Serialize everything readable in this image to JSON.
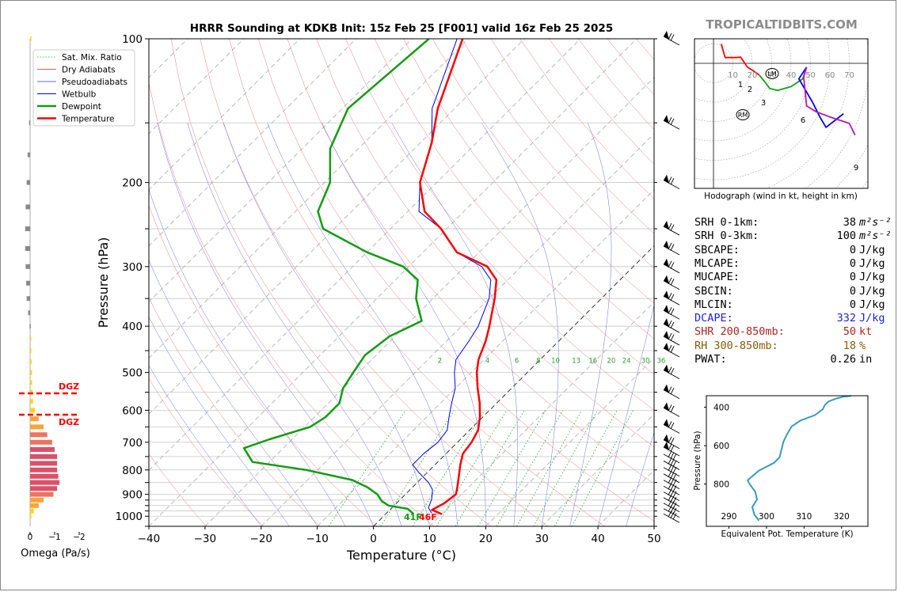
{
  "watermark": "TROPICALTIDBITS.COM",
  "chart_data": [
    {
      "type": "line",
      "subtype": "skew-t",
      "title": "HRRR Sounding at KDKB Init: 15z Feb 25 [F001] valid 16z Feb 25 2025",
      "xlabel": "Temperature (°C)",
      "ylabel": "Pressure (hPa)",
      "xlim": [
        -40,
        50
      ],
      "ylim": [
        1050,
        100
      ],
      "xticks": [
        "−40",
        "−30",
        "−20",
        "−10",
        "0",
        "10",
        "20",
        "30",
        "40",
        "50"
      ],
      "yticks": [
        "100",
        "200",
        "300",
        "400",
        "500",
        "600",
        "700",
        "800",
        "900",
        "1000"
      ],
      "legend": {
        "placement": "top-left",
        "entries": [
          {
            "label": "Sat. Mix. Ratio",
            "color": "#2ca02c",
            "style": "dotted"
          },
          {
            "label": "Dry Adiabats",
            "color": "#d62728",
            "style": "solid-thin"
          },
          {
            "label": "Pseudoadiabats",
            "color": "#1f3fd6",
            "style": "solid-thin"
          },
          {
            "label": "Wetbulb",
            "color": "#0000ff",
            "style": "solid"
          },
          {
            "label": "Dewpoint",
            "color": "#129c12",
            "style": "thick"
          },
          {
            "label": "Temperature",
            "color": "#ff0000",
            "style": "thick"
          }
        ]
      },
      "mixing_ratio_labels": [
        "2",
        "4",
        "6",
        "8",
        "10",
        "13",
        "16",
        "20",
        "24",
        "30",
        "36"
      ],
      "surface_labels": {
        "dewpoint": "41F",
        "temperature": "46F"
      },
      "series": [
        {
          "name": "Temperature",
          "color": "#ff0000",
          "points": [
            [
              10,
              990
            ],
            [
              7.5,
              970
            ],
            [
              8.5,
              940
            ],
            [
              9,
              900
            ],
            [
              8,
              870
            ],
            [
              6.5,
              830
            ],
            [
              4.5,
              780
            ],
            [
              3,
              740
            ],
            [
              2.5,
              700
            ],
            [
              1.5,
              660
            ],
            [
              -0.5,
              620
            ],
            [
              -3,
              580
            ],
            [
              -6,
              540
            ],
            [
              -9,
              500
            ],
            [
              -11,
              470
            ],
            [
              -13,
              430
            ],
            [
              -15,
              400
            ],
            [
              -19,
              350
            ],
            [
              -22,
              320
            ],
            [
              -26,
              300
            ],
            [
              -34,
              280
            ],
            [
              -41,
              250
            ],
            [
              -47,
              230
            ],
            [
              -53,
              200
            ],
            [
              -58,
              165
            ],
            [
              -63,
              140
            ],
            [
              -71,
              100
            ]
          ]
        },
        {
          "name": "Dewpoint",
          "color": "#129c12",
          "points": [
            [
              5,
              990
            ],
            [
              3,
              965
            ],
            [
              -1,
              950
            ],
            [
              -3,
              930
            ],
            [
              -5,
              900
            ],
            [
              -8,
              870
            ],
            [
              -12,
              840
            ],
            [
              -22,
              800
            ],
            [
              -33,
              770
            ],
            [
              -37,
              720
            ],
            [
              -34,
              690
            ],
            [
              -29,
              650
            ],
            [
              -28,
              620
            ],
            [
              -28,
              580
            ],
            [
              -30,
              540
            ],
            [
              -31,
              500
            ],
            [
              -32,
              460
            ],
            [
              -31,
              420
            ],
            [
              -28,
              390
            ],
            [
              -33,
              350
            ],
            [
              -36,
              320
            ],
            [
              -41,
              300
            ],
            [
              -50,
              280
            ],
            [
              -62,
              250
            ],
            [
              -66,
              230
            ],
            [
              -69,
              200
            ],
            [
              -75,
              170
            ],
            [
              -79,
              140
            ],
            [
              -77,
              100
            ]
          ]
        },
        {
          "name": "Wetbulb",
          "color": "#0000ff",
          "points": [
            [
              8,
              985
            ],
            [
              6.5,
              960
            ],
            [
              5.5,
              920
            ],
            [
              4,
              880
            ],
            [
              2,
              850
            ],
            [
              -1.5,
              810
            ],
            [
              -4,
              780
            ],
            [
              -4,
              740
            ],
            [
              -3.5,
              700
            ],
            [
              -4,
              660
            ],
            [
              -6,
              620
            ],
            [
              -8,
              580
            ],
            [
              -10,
              540
            ],
            [
              -13,
              500
            ],
            [
              -15,
              470
            ],
            [
              -16,
              430
            ],
            [
              -17,
              400
            ],
            [
              -20,
              350
            ],
            [
              -23,
              320
            ],
            [
              -27,
              300
            ],
            [
              -34,
              280
            ],
            [
              -41,
              250
            ],
            [
              -48,
              230
            ],
            [
              -53,
              200
            ],
            [
              -58,
              165
            ],
            [
              -64,
              140
            ],
            [
              -72,
              100
            ]
          ]
        }
      ]
    },
    {
      "type": "bar",
      "subtype": "horizontal",
      "name": "omega-profile",
      "xlabel": "Omega (Pa/s)",
      "xticks": [
        "0",
        "−1",
        "−2"
      ],
      "dgz_label": "DGZ",
      "dgz_pressure": [
        570,
        630
      ],
      "levels": [
        1000,
        975,
        950,
        925,
        900,
        875,
        850,
        825,
        800,
        775,
        750,
        725,
        700,
        675,
        650,
        625,
        600,
        575,
        550,
        525,
        500,
        475,
        450,
        425,
        400,
        375,
        350,
        325,
        300,
        275,
        250,
        225,
        200,
        175,
        150,
        100
      ],
      "values": [
        -0.05,
        -0.15,
        -0.35,
        -0.55,
        -0.95,
        -1.1,
        -1.2,
        -1.15,
        -1.1,
        -1.1,
        -1.1,
        -1.0,
        -0.9,
        -0.7,
        -0.55,
        -0.35,
        -0.2,
        -0.12,
        -0.1,
        -0.08,
        -0.08,
        -0.06,
        -0.05,
        -0.04,
        0.02,
        0.08,
        0.14,
        0.16,
        0.18,
        0.2,
        0.2,
        0.18,
        0.14,
        0.1,
        0.04,
        -0.05
      ]
    },
    {
      "type": "line",
      "subtype": "hodograph",
      "caption": "Hodograph (wind in kt, height in km)",
      "ring_labels": [
        "10",
        "20",
        "30",
        "40",
        "50",
        "60",
        "70"
      ],
      "markers": [
        "LM",
        "RM"
      ],
      "height_labels": [
        "1",
        "2",
        "3",
        "6",
        "9"
      ],
      "segments": [
        {
          "color": "#ff0000",
          "points": [
            [
              4,
              10
            ],
            [
              6,
              3
            ],
            [
              12,
              3
            ],
            [
              14,
              3.2
            ],
            [
              17.5,
              -2
            ],
            [
              20,
              -3.5
            ],
            [
              23.5,
              -6
            ]
          ]
        },
        {
          "color": "#14a214",
          "points": [
            [
              23.5,
              -6
            ],
            [
              26,
              -9
            ],
            [
              29,
              -13
            ],
            [
              33,
              -14
            ],
            [
              40,
              -12
            ],
            [
              46,
              -8
            ],
            [
              48,
              -2
            ]
          ]
        },
        {
          "color": "#0000ff",
          "points": [
            [
              48,
              -2
            ],
            [
              44,
              -8
            ],
            [
              51,
              -20
            ],
            [
              55,
              -28
            ],
            [
              58,
              -33
            ],
            [
              67,
              -26
            ]
          ]
        },
        {
          "color": "#b418b4",
          "points": [
            [
              48,
              -2
            ],
            [
              46.5,
              -7
            ],
            [
              48,
              -22
            ],
            [
              53,
              -25
            ],
            [
              61,
              -28
            ],
            [
              70,
              -31
            ],
            [
              73,
              -37
            ]
          ]
        }
      ]
    },
    {
      "type": "line",
      "name": "theta-e-profile",
      "xlabel": "Equivalent Pot. Temperature (K)",
      "ylabel": "Pressure (hPa)",
      "xticks": [
        "290",
        "300",
        "310",
        "320"
      ],
      "yticks": [
        "400",
        "600",
        "800"
      ],
      "xlim": [
        284,
        327
      ],
      "ylim": [
        1020,
        340
      ],
      "color": "#3a9abf",
      "points": [
        [
          298,
          990
        ],
        [
          296.8,
          960
        ],
        [
          296.2,
          920
        ],
        [
          297.5,
          880
        ],
        [
          297,
          840
        ],
        [
          295.5,
          800
        ],
        [
          295,
          780
        ],
        [
          298,
          730
        ],
        [
          302,
          690
        ],
        [
          303.5,
          660
        ],
        [
          304,
          620
        ],
        [
          304.5,
          580
        ],
        [
          305.5,
          540
        ],
        [
          306.7,
          500
        ],
        [
          309,
          470
        ],
        [
          313,
          440
        ],
        [
          315,
          410
        ],
        [
          315.5,
          390
        ],
        [
          316.5,
          370
        ],
        [
          318.5,
          355
        ],
        [
          320.5,
          345
        ],
        [
          322.5,
          341
        ]
      ]
    }
  ],
  "stats": [
    {
      "label": "SRH 0-1km:",
      "value": "38",
      "unit": "m²s⁻²",
      "color": "#000000"
    },
    {
      "label": "SRH 0-3km:",
      "value": "100",
      "unit": "m²s⁻²",
      "color": "#000000"
    },
    {
      "label": "SBCAPE:",
      "value": "0",
      "unit": "J/kg",
      "color": "#000000"
    },
    {
      "label": "MLCAPE:",
      "value": "0",
      "unit": "J/kg",
      "color": "#000000"
    },
    {
      "label": "MUCAPE:",
      "value": "0",
      "unit": "J/kg",
      "color": "#000000"
    },
    {
      "label": "SBCIN:",
      "value": "0",
      "unit": "J/kg",
      "color": "#000000"
    },
    {
      "label": "MLCIN:",
      "value": "0",
      "unit": "J/kg",
      "color": "#000000"
    },
    {
      "label": "DCAPE:",
      "value": "332",
      "unit": "J/kg",
      "color": "#1f1fe0"
    },
    {
      "label": "SHR 200-850mb:",
      "value": "50",
      "unit": "kt",
      "color": "#b22222"
    },
    {
      "label": "RH 300-850mb:",
      "value": "18",
      "unit": "%",
      "color": "#8b5a0b"
    },
    {
      "label": "PWAT:",
      "value": "0.26",
      "unit": "in",
      "color": "#000000"
    }
  ]
}
